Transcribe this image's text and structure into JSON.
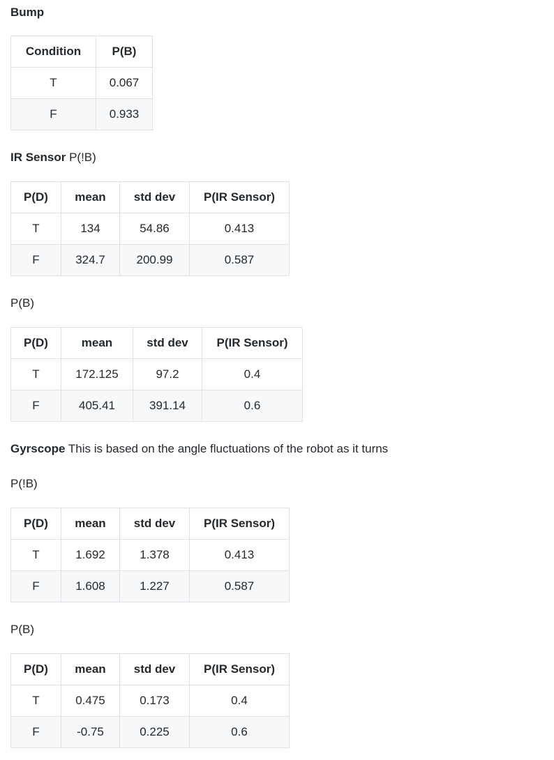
{
  "bump": {
    "heading": "Bump",
    "columns": [
      "Condition",
      "P(B)"
    ],
    "rows": [
      [
        "T",
        "0.067"
      ],
      [
        "F",
        "0.933"
      ]
    ]
  },
  "ir_sensor": {
    "heading_bold": "IR Sensor",
    "heading_rest": " P(!B)",
    "table_not_b": {
      "columns": [
        "P(D)",
        "mean",
        "std dev",
        "P(IR Sensor)"
      ],
      "rows": [
        [
          "T",
          "134",
          "54.86",
          "0.413"
        ],
        [
          "F",
          "324.7",
          "200.99",
          "0.587"
        ]
      ]
    },
    "b_label": "P(B)",
    "table_b": {
      "columns": [
        "P(D)",
        "mean",
        "std dev",
        "P(IR Sensor)"
      ],
      "rows": [
        [
          "T",
          "172.125",
          "97.2",
          "0.4"
        ],
        [
          "F",
          "405.41",
          "391.14",
          "0.6"
        ]
      ]
    }
  },
  "gyroscope": {
    "heading_bold": "Gyrscope",
    "heading_rest": " This is based on the angle fluctuations of the robot as it turns",
    "not_b_label": "P(!B)",
    "table_not_b": {
      "columns": [
        "P(D)",
        "mean",
        "std dev",
        "P(IR Sensor)"
      ],
      "rows": [
        [
          "T",
          "1.692",
          "1.378",
          "0.413"
        ],
        [
          "F",
          "1.608",
          "1.227",
          "0.587"
        ]
      ]
    },
    "b_label": "P(B)",
    "table_b": {
      "columns": [
        "P(D)",
        "mean",
        "std dev",
        "P(IR Sensor)"
      ],
      "rows": [
        [
          "T",
          "0.475",
          "0.173",
          "0.4"
        ],
        [
          "F",
          "-0.75",
          "0.225",
          "0.6"
        ]
      ]
    }
  }
}
